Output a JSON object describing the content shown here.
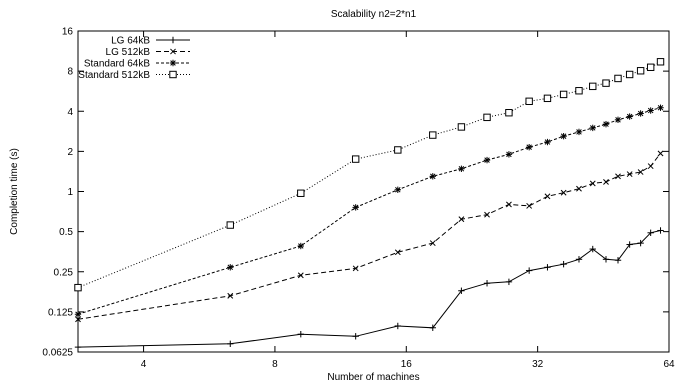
{
  "chart_data": {
    "type": "line",
    "title": "Scalability n2=2*n1",
    "xlabel": "Number of machines",
    "ylabel": "Completion time (s)",
    "x_scale": "log2",
    "y_scale": "log2",
    "xlim": [
      2.83,
      64
    ],
    "ylim": [
      0.0625,
      16
    ],
    "x_ticks": [
      4,
      8,
      16,
      32,
      64
    ],
    "x_tick_labels": [
      "4",
      "8",
      "16",
      "32",
      "64"
    ],
    "y_ticks": [
      0.0625,
      0.125,
      0.25,
      0.5,
      1,
      2,
      4,
      8,
      16
    ],
    "y_tick_labels": [
      "0.0625",
      "0.125",
      "0.25",
      "0.5",
      "1",
      "2",
      "4",
      "8",
      "16"
    ],
    "legend_position": "top-left",
    "grid": false,
    "x": [
      2.83,
      6.32,
      9.17,
      12.25,
      15.3,
      18.4,
      21.4,
      24.5,
      27.5,
      30.6,
      33.7,
      36.7,
      39.8,
      42.8,
      45.9,
      48.9,
      52,
      55.1,
      58.1,
      61.2
    ],
    "series": [
      {
        "name": "LG 64kB",
        "marker": "plus",
        "dash": "solid",
        "values": [
          0.068,
          0.072,
          0.085,
          0.082,
          0.098,
          0.095,
          0.18,
          0.205,
          0.21,
          0.255,
          0.27,
          0.285,
          0.31,
          0.37,
          0.31,
          0.305,
          0.4,
          0.41,
          0.49,
          0.51
        ]
      },
      {
        "name": "LG 512kB",
        "marker": "x",
        "dash": "dashed",
        "values": [
          0.11,
          0.165,
          0.235,
          0.265,
          0.35,
          0.41,
          0.62,
          0.67,
          0.8,
          0.78,
          0.92,
          0.98,
          1.05,
          1.15,
          1.18,
          1.3,
          1.35,
          1.4,
          1.55,
          1.93
        ]
      },
      {
        "name": "Standard 64kB",
        "marker": "asterisk",
        "dash": "dense-dashed",
        "values": [
          0.12,
          0.27,
          0.39,
          0.76,
          1.03,
          1.3,
          1.48,
          1.72,
          1.9,
          2.15,
          2.35,
          2.6,
          2.8,
          3.0,
          3.2,
          3.45,
          3.65,
          3.85,
          4.05,
          4.25
        ]
      },
      {
        "name": "Standard 512kB",
        "marker": "square",
        "dash": "dotted",
        "values": [
          0.19,
          0.56,
          0.97,
          1.75,
          2.05,
          2.65,
          3.05,
          3.6,
          3.9,
          4.75,
          5.0,
          5.35,
          5.7,
          6.15,
          6.5,
          7.05,
          7.55,
          8.05,
          8.55,
          9.4
        ]
      }
    ]
  }
}
